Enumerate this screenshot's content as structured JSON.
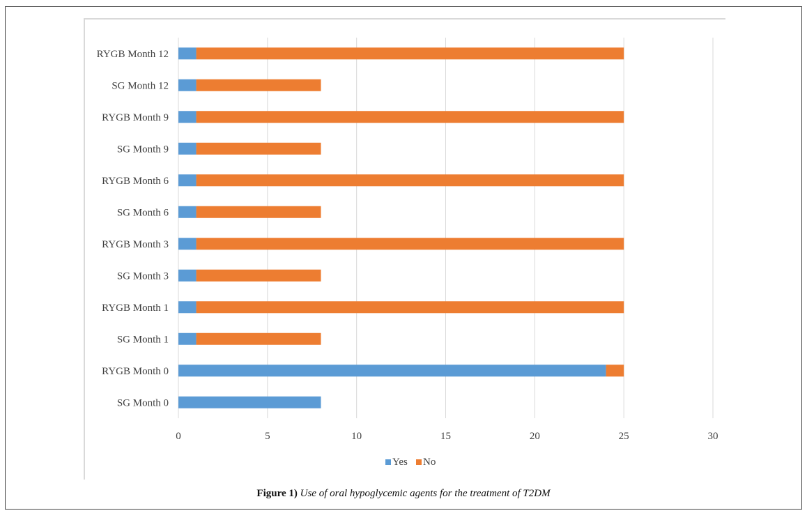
{
  "chart_data": {
    "type": "bar",
    "orientation": "horizontal",
    "stacked": true,
    "categories": [
      "SG Month 0",
      "RYGB Month 0",
      "SG Month 1",
      "RYGB Month 1",
      "SG Month 3",
      "RYGB Month 3",
      "SG Month 6",
      "RYGB Month 6",
      "SG Month 9",
      "RYGB Month 9",
      "SG Month 12",
      "RYGB Month 12"
    ],
    "series": [
      {
        "name": "Yes",
        "color": "#5b9bd5",
        "values": [
          8,
          24,
          1,
          1,
          1,
          1,
          1,
          1,
          1,
          1,
          1,
          1
        ]
      },
      {
        "name": "No",
        "color": "#ed7d31",
        "values": [
          0,
          1,
          7,
          24,
          7,
          24,
          7,
          24,
          7,
          24,
          7,
          24
        ]
      }
    ],
    "xlim": [
      0,
      30
    ],
    "xticks": [
      "0",
      "5",
      "10",
      "15",
      "20",
      "25",
      "30"
    ],
    "grid": true,
    "legend_position": "bottom"
  },
  "caption": {
    "label": "Figure 1)",
    "text": " Use of oral hypoglycemic agents for the treatment of T2DM"
  }
}
